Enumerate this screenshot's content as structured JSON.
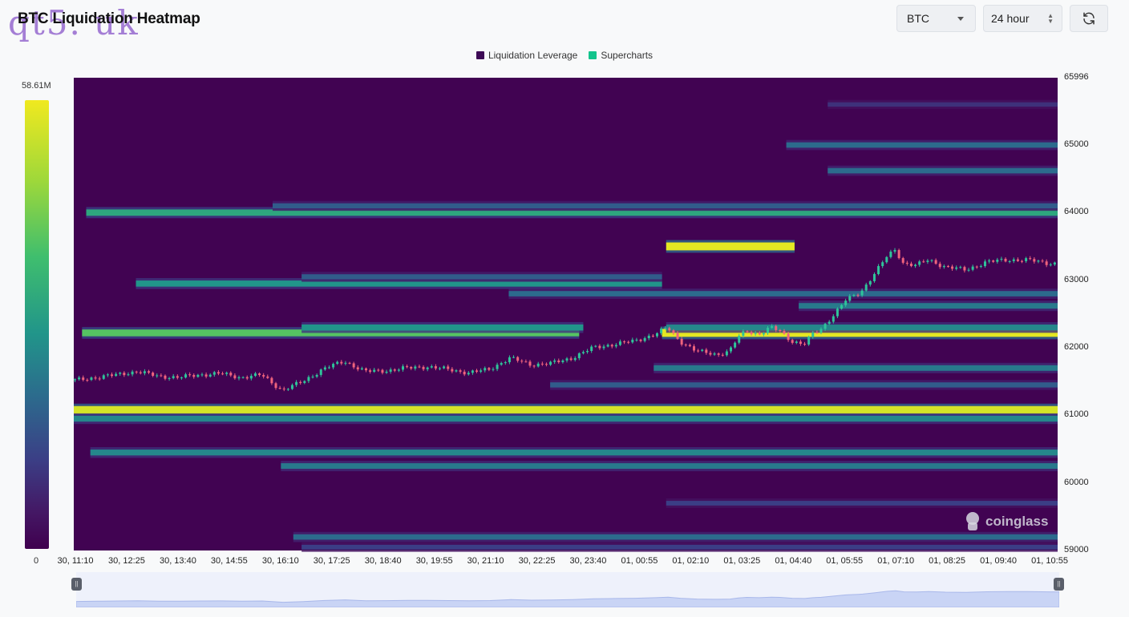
{
  "header": {
    "title": "BTC Liquidation Heatmap",
    "watermark": "qt5. uk",
    "coin_select": "BTC",
    "range_select": "24 hour"
  },
  "brand": {
    "logo_text": "coinglass"
  },
  "colors": {
    "low": "#40004f",
    "high": "#f0e91f",
    "up_candle": "#2fc49a",
    "down_candle": "#f0637d",
    "legend_leverage": "#3d0a55",
    "legend_supercharts": "#12c48c"
  },
  "chart_data": {
    "type": "heatmap",
    "title": "BTC Liquidation Heatmap",
    "legend": [
      {
        "name": "Liquidation Leverage",
        "color": "#3d0a55"
      },
      {
        "name": "Supercharts",
        "color": "#12c48c"
      }
    ],
    "legend_position": "top-center",
    "colorbar": {
      "max_label": "58.61M",
      "min_label": "0",
      "max": 58610000,
      "min": 0
    },
    "y_ticks": [
      "65996",
      "65000",
      "64000",
      "63000",
      "62000",
      "61000",
      "60000",
      "59000"
    ],
    "ylim": [
      59000,
      65996
    ],
    "x_ticks": [
      "30, 11:10",
      "30, 12:25",
      "30, 13:40",
      "30, 14:55",
      "30, 16:10",
      "30, 17:25",
      "30, 18:40",
      "30, 19:55",
      "30, 21:10",
      "30, 22:25",
      "30, 23:40",
      "01, 00:55",
      "01, 02:10",
      "01, 03:25",
      "01, 04:40",
      "01, 05:55",
      "01, 07:10",
      "01, 08:25",
      "01, 09:40",
      "01, 10:55"
    ],
    "x_range_hours": [
      0,
      23.75
    ],
    "bands": [
      {
        "price": 65000,
        "start_h": 17.2,
        "end_h": 23.75,
        "intensity": 0.45
      },
      {
        "price": 65600,
        "start_h": 18.2,
        "end_h": 23.75,
        "intensity": 0.25
      },
      {
        "price": 64620,
        "start_h": 18.2,
        "end_h": 23.75,
        "intensity": 0.45
      },
      {
        "price": 64000,
        "start_h": 0.3,
        "end_h": 23.75,
        "intensity": 0.65
      },
      {
        "price": 64100,
        "start_h": 4.8,
        "end_h": 23.75,
        "intensity": 0.4
      },
      {
        "price": 63500,
        "start_h": 14.3,
        "end_h": 17.4,
        "intensity": 0.98
      },
      {
        "price": 62950,
        "start_h": 1.5,
        "end_h": 14.2,
        "intensity": 0.6
      },
      {
        "price": 63050,
        "start_h": 5.5,
        "end_h": 14.2,
        "intensity": 0.4
      },
      {
        "price": 62800,
        "start_h": 10.5,
        "end_h": 23.75,
        "intensity": 0.45
      },
      {
        "price": 62620,
        "start_h": 17.5,
        "end_h": 23.75,
        "intensity": 0.5
      },
      {
        "price": 62220,
        "start_h": 0.2,
        "end_h": 12.2,
        "intensity": 0.75
      },
      {
        "price": 62300,
        "start_h": 5.5,
        "end_h": 12.3,
        "intensity": 0.6
      },
      {
        "price": 62220,
        "start_h": 14.2,
        "end_h": 23.75,
        "intensity": 0.98
      },
      {
        "price": 62300,
        "start_h": 14.3,
        "end_h": 23.75,
        "intensity": 0.55
      },
      {
        "price": 61700,
        "start_h": 14.0,
        "end_h": 23.75,
        "intensity": 0.5
      },
      {
        "price": 61450,
        "start_h": 11.5,
        "end_h": 23.75,
        "intensity": 0.4
      },
      {
        "price": 61080,
        "start_h": 0.0,
        "end_h": 23.75,
        "intensity": 0.95
      },
      {
        "price": 60950,
        "start_h": 0.0,
        "end_h": 23.75,
        "intensity": 0.55
      },
      {
        "price": 60450,
        "start_h": 0.4,
        "end_h": 23.75,
        "intensity": 0.55
      },
      {
        "price": 60250,
        "start_h": 5.0,
        "end_h": 23.75,
        "intensity": 0.5
      },
      {
        "price": 59700,
        "start_h": 14.3,
        "end_h": 23.75,
        "intensity": 0.3
      },
      {
        "price": 59200,
        "start_h": 5.3,
        "end_h": 23.75,
        "intensity": 0.45
      },
      {
        "price": 59050,
        "start_h": 5.5,
        "end_h": 23.75,
        "intensity": 0.3
      }
    ],
    "price_path": [
      [
        0.0,
        61520
      ],
      [
        0.5,
        61560
      ],
      [
        1.0,
        61600
      ],
      [
        1.5,
        61650
      ],
      [
        2.0,
        61580
      ],
      [
        2.5,
        61560
      ],
      [
        3.0,
        61600
      ],
      [
        3.5,
        61620
      ],
      [
        4.0,
        61560
      ],
      [
        4.5,
        61600
      ],
      [
        5.0,
        61370
      ],
      [
        5.5,
        61500
      ],
      [
        6.0,
        61690
      ],
      [
        6.5,
        61800
      ],
      [
        7.0,
        61650
      ],
      [
        7.5,
        61660
      ],
      [
        8.0,
        61700
      ],
      [
        8.5,
        61720
      ],
      [
        9.0,
        61680
      ],
      [
        9.5,
        61630
      ],
      [
        10.0,
        61680
      ],
      [
        10.5,
        61850
      ],
      [
        11.0,
        61750
      ],
      [
        11.5,
        61770
      ],
      [
        12.0,
        61850
      ],
      [
        12.5,
        62000
      ],
      [
        13.0,
        62050
      ],
      [
        13.5,
        62100
      ],
      [
        14.0,
        62200
      ],
      [
        14.3,
        62300
      ],
      [
        14.6,
        62100
      ],
      [
        15.0,
        61950
      ],
      [
        15.5,
        61900
      ],
      [
        15.8,
        61950
      ],
      [
        16.0,
        62150
      ],
      [
        16.2,
        62250
      ],
      [
        16.5,
        62200
      ],
      [
        16.8,
        62300
      ],
      [
        17.0,
        62250
      ],
      [
        17.3,
        62100
      ],
      [
        17.6,
        62050
      ],
      [
        17.8,
        62200
      ],
      [
        18.0,
        62270
      ],
      [
        18.3,
        62480
      ],
      [
        18.6,
        62700
      ],
      [
        18.9,
        62800
      ],
      [
        19.0,
        62850
      ],
      [
        19.3,
        63100
      ],
      [
        19.6,
        63350
      ],
      [
        19.8,
        63450
      ],
      [
        20.0,
        63250
      ],
      [
        20.3,
        63220
      ],
      [
        20.6,
        63300
      ],
      [
        21.0,
        63200
      ],
      [
        21.5,
        63150
      ],
      [
        22.0,
        63270
      ],
      [
        22.5,
        63300
      ],
      [
        23.0,
        63300
      ],
      [
        23.5,
        63250
      ],
      [
        23.75,
        63250
      ]
    ]
  }
}
